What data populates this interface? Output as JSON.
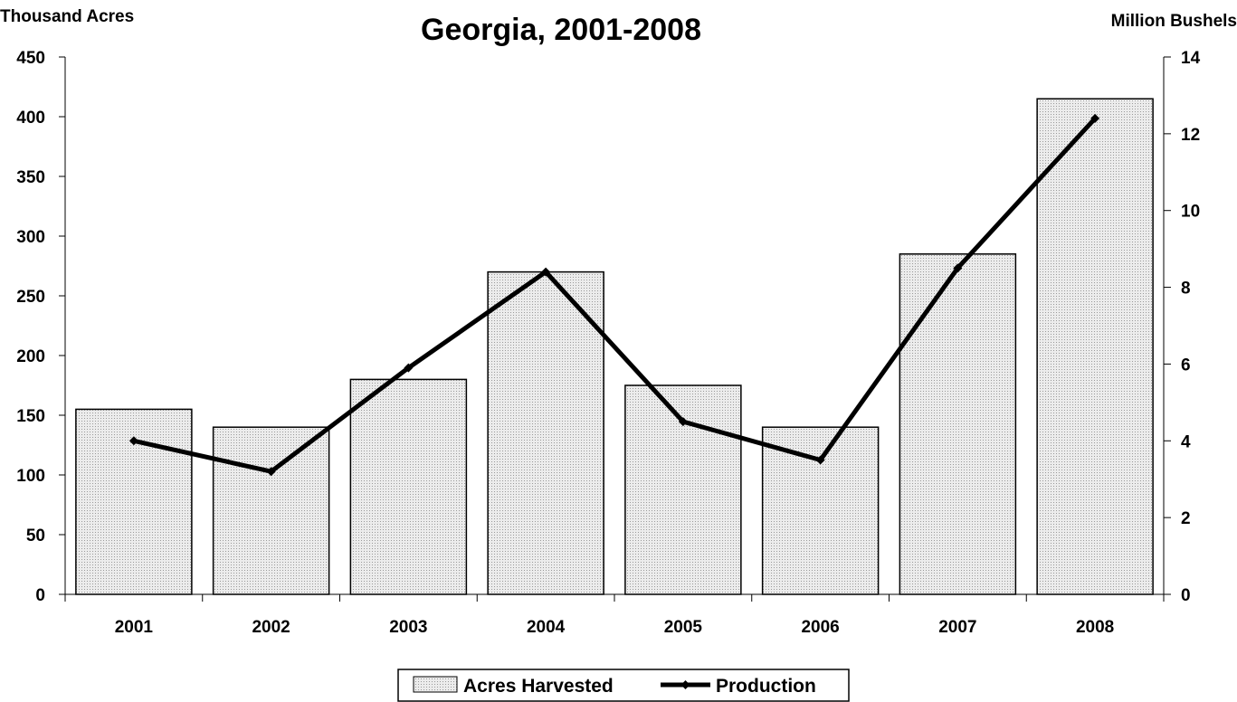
{
  "chart_data": {
    "type": "bar",
    "title": "Georgia, 2001-2008",
    "ylabel_left": "Thousand Acres",
    "ylabel_right": "Million Bushels",
    "categories": [
      "2001",
      "2002",
      "2003",
      "2004",
      "2005",
      "2006",
      "2007",
      "2008"
    ],
    "ylim_left": [
      0,
      450
    ],
    "yticks_left": [
      0,
      50,
      100,
      150,
      200,
      250,
      300,
      350,
      400,
      450
    ],
    "ylim_right": [
      0,
      14
    ],
    "yticks_right": [
      0,
      2,
      4,
      6,
      8,
      10,
      12,
      14
    ],
    "grid": false,
    "legend_position": "bottom-center",
    "series": [
      {
        "name": "Acres Harvested",
        "type": "bar",
        "axis": "left",
        "values": [
          155,
          140,
          180,
          270,
          175,
          140,
          285,
          415
        ]
      },
      {
        "name": "Production",
        "type": "line",
        "axis": "right",
        "values": [
          4.0,
          3.2,
          5.9,
          8.4,
          4.5,
          3.5,
          8.5,
          12.4
        ]
      }
    ],
    "colors": {
      "bar_fill": "#e4e4e4",
      "bar_stroke": "#000000",
      "line": "#000000"
    }
  }
}
